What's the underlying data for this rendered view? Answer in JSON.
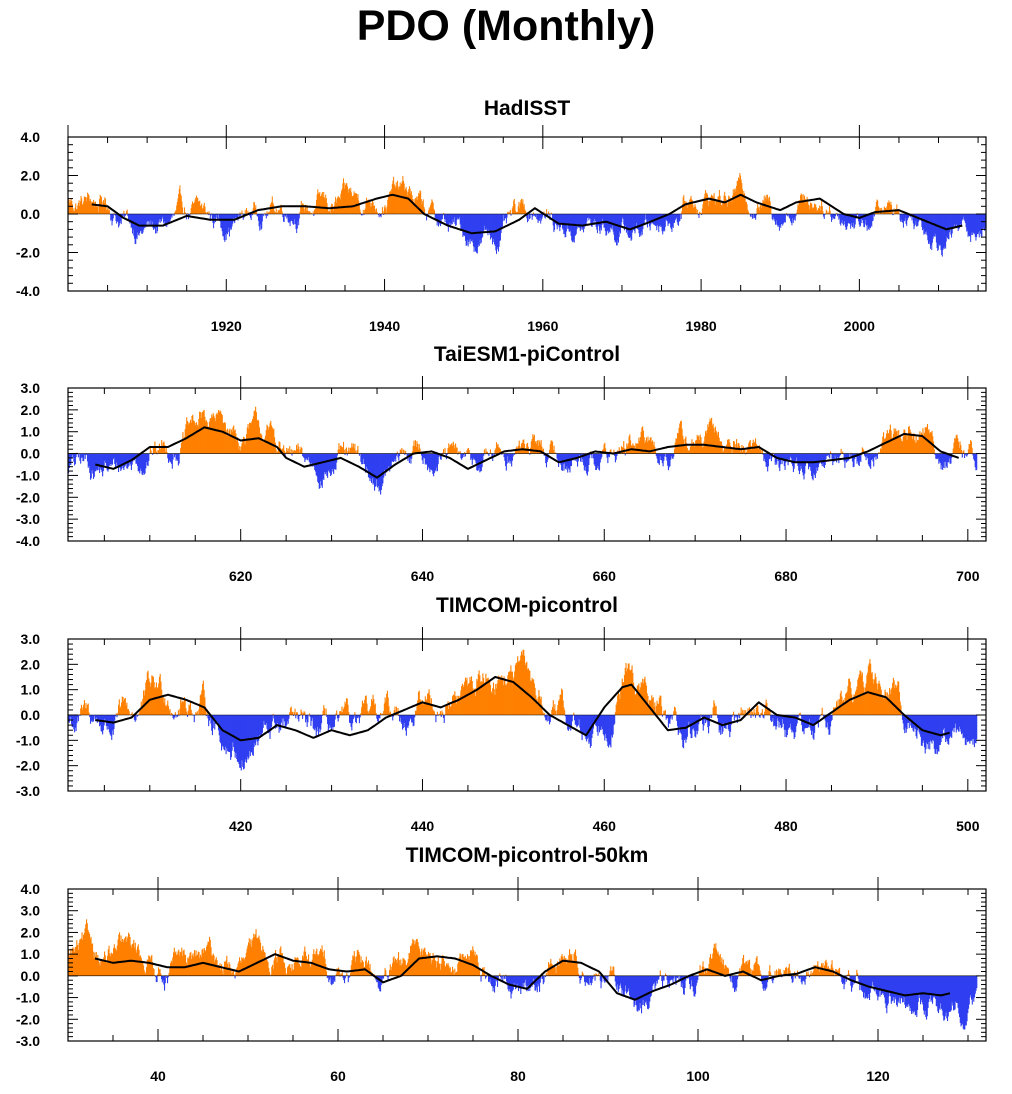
{
  "figure": {
    "title": "PDO (Monthly)",
    "colors": {
      "positive": "#ff8000",
      "negative": "#2f3ff0",
      "smooth": "#000000"
    }
  },
  "chart_data": [
    {
      "type": "bar",
      "title": "HadISST",
      "xlim": [
        1900,
        2016
      ],
      "ylim": [
        -4.0,
        4.0
      ],
      "xticks": [
        1920,
        1940,
        1960,
        1980,
        2000
      ],
      "yticks": [
        4.0,
        2.0,
        0.0,
        -2.0,
        -4.0
      ],
      "ytick_labels": [
        "4.0",
        "2.0",
        "0.0",
        "-2.0",
        "-4.0"
      ],
      "bar_range": [
        1900,
        2016
      ],
      "smooth_range": [
        1903,
        2013
      ],
      "smooth_points": [
        [
          1903,
          0.5
        ],
        [
          1905,
          0.4
        ],
        [
          1907,
          -0.2
        ],
        [
          1909,
          -0.6
        ],
        [
          1912,
          -0.6
        ],
        [
          1915,
          -0.1
        ],
        [
          1918,
          -0.3
        ],
        [
          1921,
          -0.3
        ],
        [
          1924,
          0.2
        ],
        [
          1927,
          0.4
        ],
        [
          1930,
          0.4
        ],
        [
          1933,
          0.3
        ],
        [
          1936,
          0.4
        ],
        [
          1939,
          0.8
        ],
        [
          1941,
          1.0
        ],
        [
          1943,
          0.8
        ],
        [
          1945,
          0.0
        ],
        [
          1948,
          -0.6
        ],
        [
          1951,
          -1.0
        ],
        [
          1954,
          -0.9
        ],
        [
          1957,
          -0.3
        ],
        [
          1959,
          0.3
        ],
        [
          1962,
          -0.5
        ],
        [
          1965,
          -0.6
        ],
        [
          1968,
          -0.4
        ],
        [
          1971,
          -0.8
        ],
        [
          1973,
          -0.5
        ],
        [
          1976,
          0.0
        ],
        [
          1978,
          0.5
        ],
        [
          1981,
          0.8
        ],
        [
          1983,
          0.6
        ],
        [
          1985,
          1.0
        ],
        [
          1987,
          0.6
        ],
        [
          1990,
          0.2
        ],
        [
          1992,
          0.6
        ],
        [
          1995,
          0.8
        ],
        [
          1998,
          0.0
        ],
        [
          2000,
          -0.2
        ],
        [
          2002,
          0.1
        ],
        [
          2005,
          0.2
        ],
        [
          2008,
          -0.3
        ],
        [
          2011,
          -0.8
        ],
        [
          2013,
          -0.6
        ]
      ]
    },
    {
      "type": "bar",
      "title": "TaiESM1-piControl",
      "xlim": [
        601,
        702
      ],
      "ylim": [
        -4.0,
        3.0
      ],
      "xticks": [
        620,
        640,
        660,
        680,
        700
      ],
      "yticks": [
        3.0,
        2.0,
        1.0,
        0.0,
        -1.0,
        -2.0,
        -3.0,
        -4.0
      ],
      "ytick_labels": [
        "3.0",
        "2.0",
        "1.0",
        "0.0",
        "-1.0",
        "-2.0",
        "-3.0",
        "-4.0"
      ],
      "bar_range": [
        601,
        701
      ],
      "smooth_range": [
        604,
        699
      ],
      "smooth_points": [
        [
          604,
          -0.5
        ],
        [
          606,
          -0.7
        ],
        [
          608,
          -0.3
        ],
        [
          610,
          0.3
        ],
        [
          612,
          0.3
        ],
        [
          614,
          0.7
        ],
        [
          616,
          1.2
        ],
        [
          618,
          1.0
        ],
        [
          620,
          0.6
        ],
        [
          622,
          0.7
        ],
        [
          624,
          0.3
        ],
        [
          625,
          -0.2
        ],
        [
          627,
          -0.6
        ],
        [
          629,
          -0.4
        ],
        [
          631,
          -0.2
        ],
        [
          633,
          -0.6
        ],
        [
          635,
          -1.1
        ],
        [
          637,
          -0.5
        ],
        [
          639,
          0.0
        ],
        [
          641,
          0.1
        ],
        [
          643,
          -0.2
        ],
        [
          645,
          -0.7
        ],
        [
          647,
          -0.3
        ],
        [
          649,
          0.1
        ],
        [
          651,
          0.2
        ],
        [
          653,
          0.1
        ],
        [
          655,
          -0.4
        ],
        [
          657,
          -0.2
        ],
        [
          659,
          0.1
        ],
        [
          661,
          0.0
        ],
        [
          663,
          0.2
        ],
        [
          665,
          0.1
        ],
        [
          667,
          0.3
        ],
        [
          669,
          0.4
        ],
        [
          671,
          0.4
        ],
        [
          673,
          0.3
        ],
        [
          675,
          0.2
        ],
        [
          677,
          0.3
        ],
        [
          679,
          -0.2
        ],
        [
          681,
          -0.4
        ],
        [
          683,
          -0.4
        ],
        [
          685,
          -0.3
        ],
        [
          687,
          -0.2
        ],
        [
          689,
          0.1
        ],
        [
          691,
          0.5
        ],
        [
          693,
          0.9
        ],
        [
          695,
          0.8
        ],
        [
          697,
          0.1
        ],
        [
          699,
          -0.2
        ]
      ]
    },
    {
      "type": "bar",
      "title": "TIMCOM-picontrol",
      "xlim": [
        401,
        502
      ],
      "ylim": [
        -3.0,
        3.0
      ],
      "xticks": [
        420,
        440,
        460,
        480,
        500
      ],
      "yticks": [
        3.0,
        2.0,
        1.0,
        0.0,
        -1.0,
        -2.0,
        -3.0
      ],
      "ytick_labels": [
        "3.0",
        "2.0",
        "1.0",
        "0.0",
        "-1.0",
        "-2.0",
        "-3.0"
      ],
      "bar_range": [
        401,
        501
      ],
      "smooth_range": [
        404,
        498
      ],
      "smooth_points": [
        [
          404,
          -0.2
        ],
        [
          406,
          -0.3
        ],
        [
          408,
          -0.1
        ],
        [
          410,
          0.6
        ],
        [
          412,
          0.8
        ],
        [
          414,
          0.6
        ],
        [
          416,
          0.3
        ],
        [
          418,
          -0.6
        ],
        [
          420,
          -1.0
        ],
        [
          422,
          -0.9
        ],
        [
          424,
          -0.4
        ],
        [
          426,
          -0.6
        ],
        [
          428,
          -0.9
        ],
        [
          430,
          -0.6
        ],
        [
          432,
          -0.8
        ],
        [
          434,
          -0.6
        ],
        [
          436,
          -0.1
        ],
        [
          438,
          0.2
        ],
        [
          440,
          0.5
        ],
        [
          442,
          0.3
        ],
        [
          444,
          0.6
        ],
        [
          446,
          1.0
        ],
        [
          448,
          1.5
        ],
        [
          450,
          1.3
        ],
        [
          452,
          0.7
        ],
        [
          454,
          0.0
        ],
        [
          456,
          -0.4
        ],
        [
          458,
          -0.8
        ],
        [
          460,
          0.3
        ],
        [
          462,
          1.1
        ],
        [
          463,
          1.2
        ],
        [
          465,
          0.3
        ],
        [
          467,
          -0.6
        ],
        [
          469,
          -0.5
        ],
        [
          471,
          -0.1
        ],
        [
          473,
          -0.4
        ],
        [
          475,
          -0.2
        ],
        [
          477,
          0.5
        ],
        [
          479,
          0.0
        ],
        [
          481,
          -0.1
        ],
        [
          483,
          -0.4
        ],
        [
          485,
          0.1
        ],
        [
          487,
          0.6
        ],
        [
          489,
          0.9
        ],
        [
          491,
          0.7
        ],
        [
          493,
          0.0
        ],
        [
          495,
          -0.6
        ],
        [
          497,
          -0.8
        ],
        [
          498,
          -0.7
        ]
      ]
    },
    {
      "type": "bar",
      "title": "TIMCOM-picontrol-50km",
      "xlim": [
        30,
        132
      ],
      "ylim": [
        -3.0,
        4.0
      ],
      "xticks": [
        40,
        60,
        80,
        100,
        120
      ],
      "yticks": [
        4.0,
        3.0,
        2.0,
        1.0,
        0.0,
        -1.0,
        -2.0,
        -3.0
      ],
      "ytick_labels": [
        "4.0",
        "3.0",
        "2.0",
        "1.0",
        "0.0",
        "-1.0",
        "-2.0",
        "-3.0"
      ],
      "bar_range": [
        30,
        131
      ],
      "smooth_range": [
        33,
        128
      ],
      "smooth_points": [
        [
          33,
          0.8
        ],
        [
          35,
          0.6
        ],
        [
          37,
          0.7
        ],
        [
          39,
          0.6
        ],
        [
          41,
          0.4
        ],
        [
          43,
          0.4
        ],
        [
          45,
          0.6
        ],
        [
          47,
          0.4
        ],
        [
          49,
          0.2
        ],
        [
          51,
          0.6
        ],
        [
          53,
          1.0
        ],
        [
          55,
          0.7
        ],
        [
          57,
          0.6
        ],
        [
          59,
          0.3
        ],
        [
          61,
          0.2
        ],
        [
          63,
          0.3
        ],
        [
          65,
          -0.3
        ],
        [
          67,
          0.0
        ],
        [
          69,
          0.8
        ],
        [
          71,
          0.9
        ],
        [
          73,
          0.8
        ],
        [
          75,
          0.5
        ],
        [
          77,
          0.0
        ],
        [
          79,
          -0.4
        ],
        [
          81,
          -0.6
        ],
        [
          83,
          0.2
        ],
        [
          85,
          0.7
        ],
        [
          87,
          0.6
        ],
        [
          89,
          0.2
        ],
        [
          91,
          -0.8
        ],
        [
          93,
          -1.1
        ],
        [
          95,
          -0.7
        ],
        [
          97,
          -0.4
        ],
        [
          99,
          0.0
        ],
        [
          101,
          0.3
        ],
        [
          103,
          0.0
        ],
        [
          105,
          0.2
        ],
        [
          107,
          -0.2
        ],
        [
          109,
          0.0
        ],
        [
          111,
          0.1
        ],
        [
          113,
          0.4
        ],
        [
          115,
          0.2
        ],
        [
          117,
          -0.2
        ],
        [
          119,
          -0.5
        ],
        [
          121,
          -0.7
        ],
        [
          123,
          -0.9
        ],
        [
          125,
          -0.8
        ],
        [
          127,
          -0.9
        ],
        [
          128,
          -0.8
        ]
      ]
    }
  ]
}
